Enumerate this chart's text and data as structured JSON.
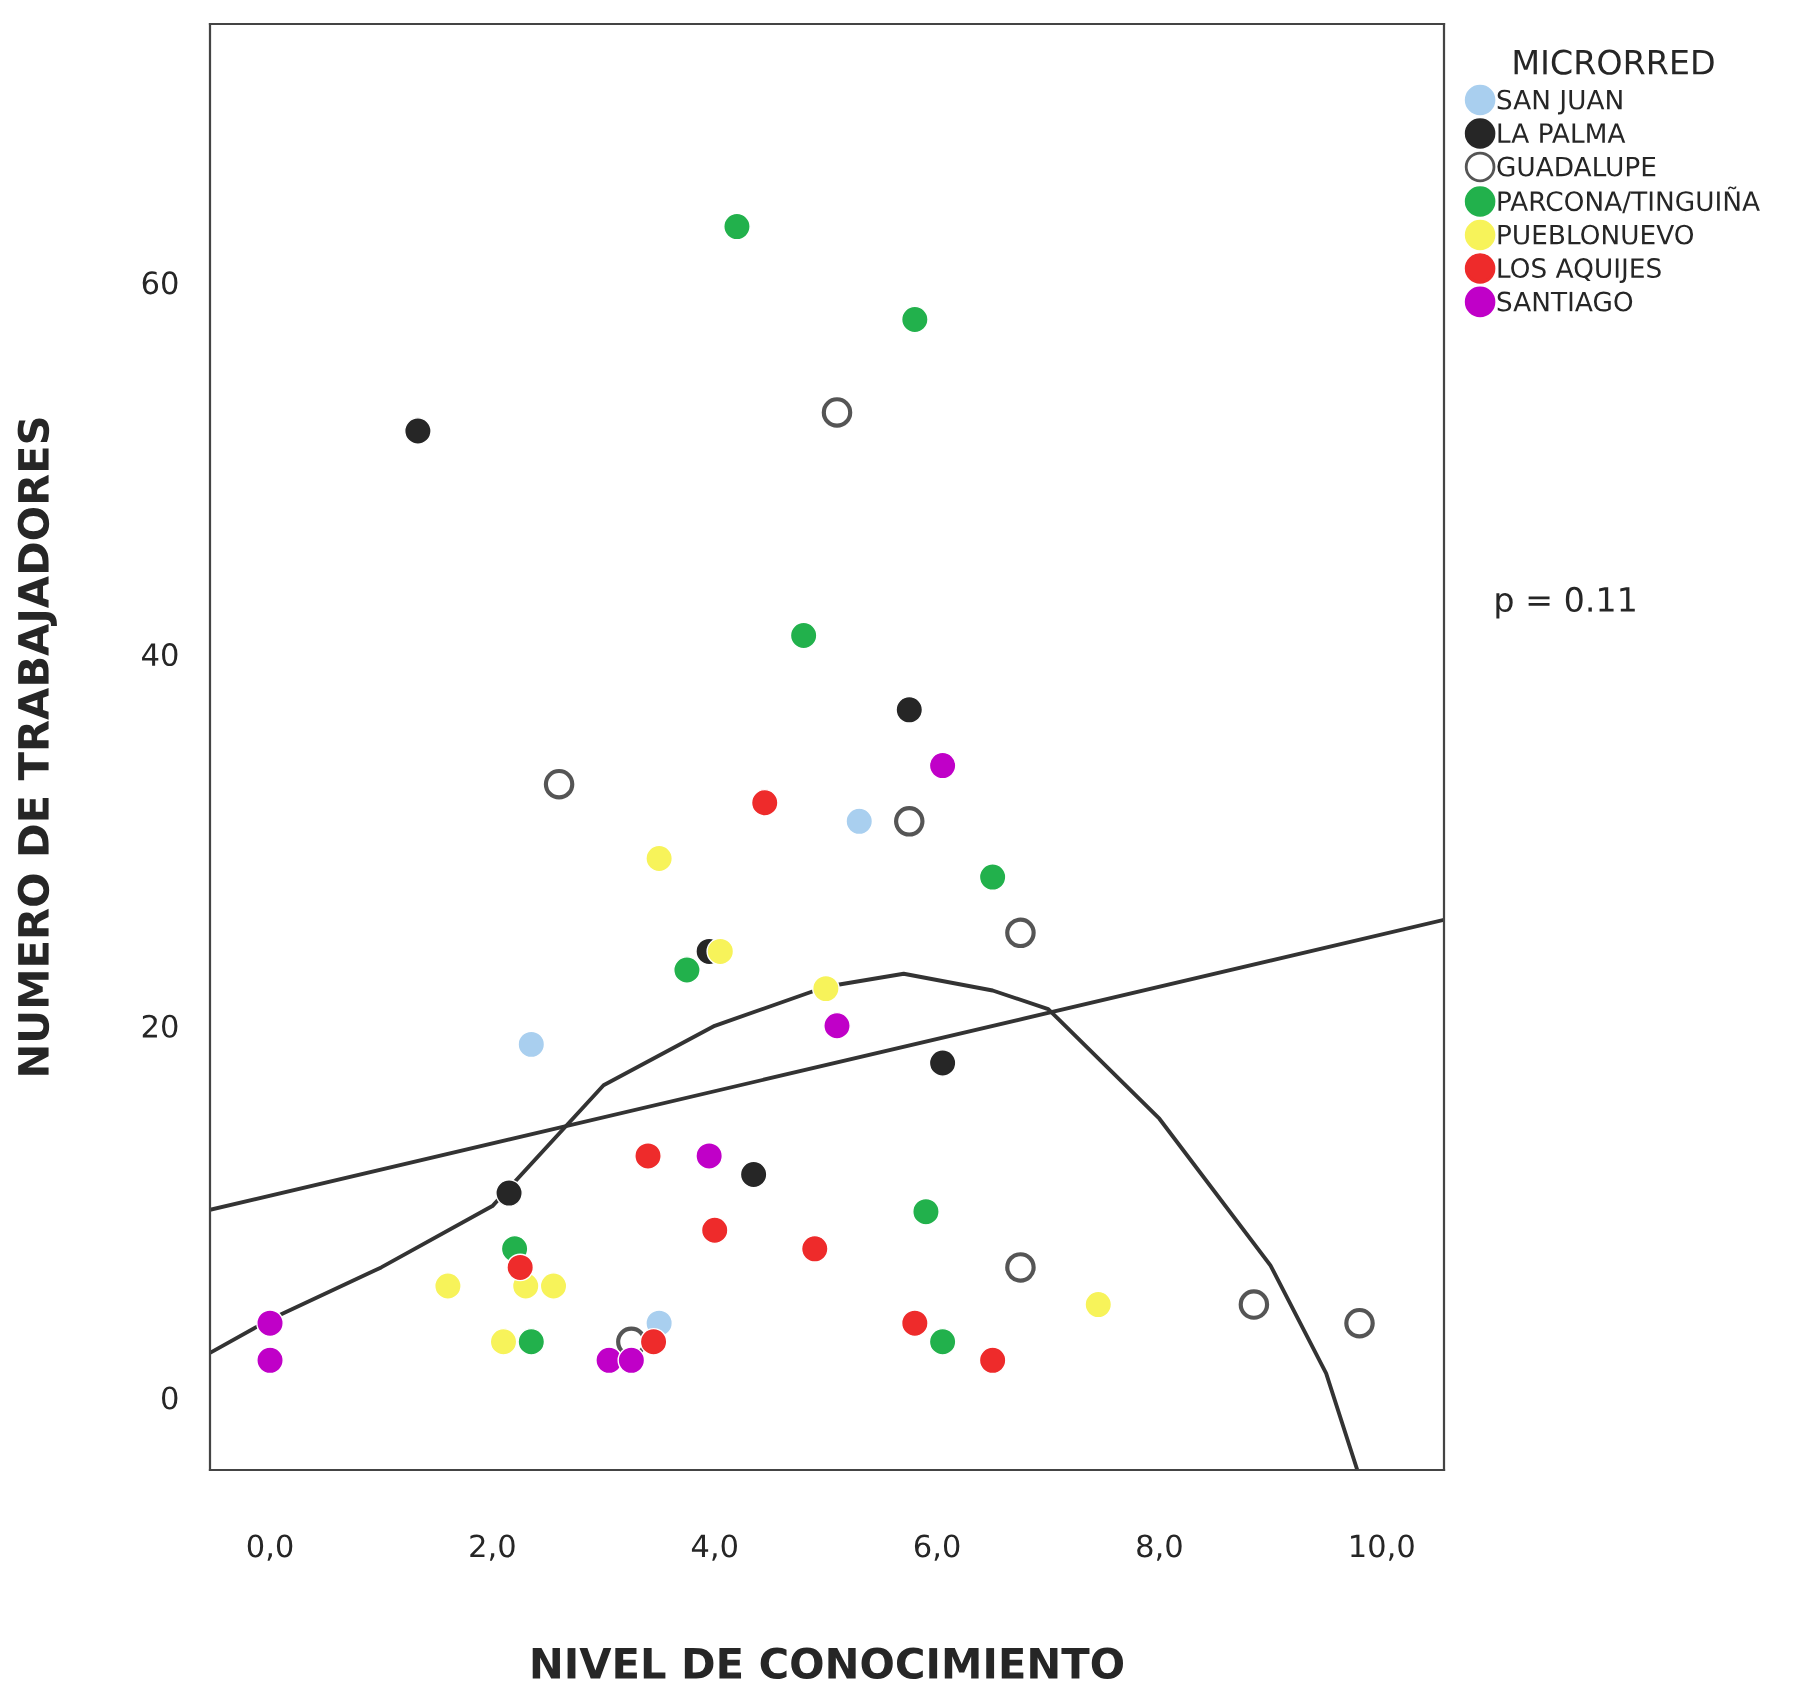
{
  "chart_data": {
    "type": "scatter",
    "xlabel": "NIVEL DE CONOCIMIENTO",
    "ylabel": "NUMERO DE TRABAJADORES",
    "legend_title": "MICRORRED",
    "legend": "right",
    "grid": false,
    "marker": "circle",
    "xlim": [
      -0.54,
      10.56
    ],
    "ylim": [
      -3.9,
      73.9
    ],
    "xticks": [
      {
        "value": 0,
        "label": "0,0"
      },
      {
        "value": 2,
        "label": "2,0"
      },
      {
        "value": 4,
        "label": "4,0"
      },
      {
        "value": 6,
        "label": "6,0"
      },
      {
        "value": 8,
        "label": "8,0"
      },
      {
        "value": 10,
        "label": "10,0"
      }
    ],
    "yticks": [
      0,
      20,
      40,
      60
    ],
    "annotations": [
      "p = 0.11"
    ],
    "series": [
      {
        "name": "SAN JUAN",
        "color": "#a9cfef",
        "x": [
          5.3,
          2.35,
          3.5
        ],
        "values": [
          31,
          19,
          4
        ]
      },
      {
        "name": "LA PALMA",
        "color": "#262626",
        "x": [
          1.33,
          3.95,
          2.15,
          4.35,
          5.75,
          6.05
        ],
        "values": [
          52,
          24,
          11,
          12,
          37,
          18
        ]
      },
      {
        "name": "GUADALUPE",
        "color": "#ffffff",
        "x": [
          5.1,
          2.6,
          5.75,
          6.75,
          6.75,
          8.85,
          9.8,
          3.25
        ],
        "values": [
          53,
          33,
          31,
          25,
          7,
          5,
          4,
          3
        ]
      },
      {
        "name": "PARCONA/TINGUIÑA",
        "color": "#22b14c",
        "x": [
          4.2,
          5.8,
          4.8,
          3.75,
          6.5,
          5.9,
          6.05,
          2.2,
          2.35
        ],
        "values": [
          63,
          58,
          41,
          23,
          28,
          10,
          3,
          8,
          3
        ]
      },
      {
        "name": "PUEBLONUEVO",
        "color": "#f7f35a",
        "x": [
          3.5,
          4.05,
          5.0,
          1.6,
          2.3,
          2.55,
          2.1,
          7.45
        ],
        "values": [
          29,
          24,
          22,
          6,
          6,
          6,
          3,
          5
        ]
      },
      {
        "name": "LOS AQUIJES",
        "color": "#ee2b2b",
        "x": [
          4.45,
          3.4,
          4.0,
          4.9,
          2.25,
          3.45,
          5.8,
          6.5
        ],
        "values": [
          32,
          13,
          9,
          8,
          7,
          3,
          4,
          2
        ]
      },
      {
        "name": "SANTIAGO",
        "color": "#c000c8",
        "x": [
          6.05,
          5.1,
          3.95,
          0,
          0,
          3.05,
          3.25
        ],
        "values": [
          34,
          20,
          13,
          4,
          2,
          2,
          2
        ]
      },
      {
        "type": "line",
        "marker": "none",
        "color": "#333333",
        "x": [
          -0.54,
          10.56
        ],
        "values": [
          10.1,
          25.7
        ]
      },
      {
        "type": "line",
        "marker": "none",
        "color": "#333333",
        "x": [
          -0.54,
          0,
          1,
          2,
          3,
          4,
          5,
          5.7,
          6.5,
          7,
          8,
          9,
          9.5,
          9.78
        ],
        "values": [
          2.4,
          4.2,
          7,
          10.3,
          16.8,
          20,
          22.1,
          22.8,
          21.9,
          20.9,
          15,
          7.1,
          1.3,
          -3.9
        ]
      }
    ]
  }
}
